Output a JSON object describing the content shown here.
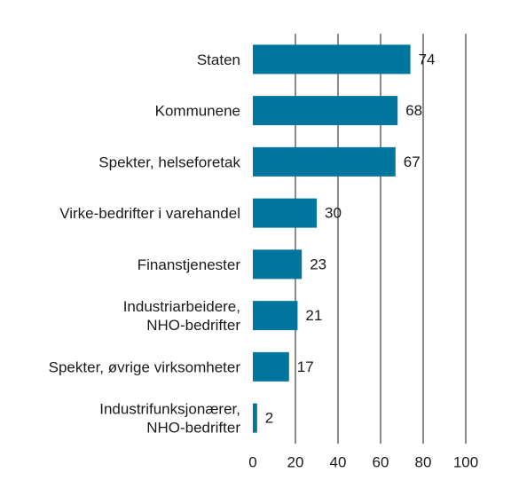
{
  "chart_data": {
    "type": "bar",
    "orientation": "horizontal",
    "title": "",
    "xlabel": "",
    "ylabel": "",
    "categories": [
      [
        "Staten"
      ],
      [
        "Kommunene"
      ],
      [
        "Spekter, helseforetak"
      ],
      [
        "Virke-bedrifter i varehandel"
      ],
      [
        "Finanstjenester"
      ],
      [
        "Industriarbeidere,",
        "NHO-bedrifter"
      ],
      [
        "Spekter, øvrige virksomheter"
      ],
      [
        "Industrifunksjonærer,",
        "NHO-bedrifter"
      ]
    ],
    "values": [
      74,
      68,
      67,
      30,
      23,
      21,
      17,
      2
    ],
    "xlim": [
      0,
      100
    ],
    "xticks": [
      0,
      20,
      40,
      60,
      80,
      100
    ],
    "grid": "vertical",
    "bar_color": "#00759e",
    "grid_color": "#1a1a1a"
  }
}
